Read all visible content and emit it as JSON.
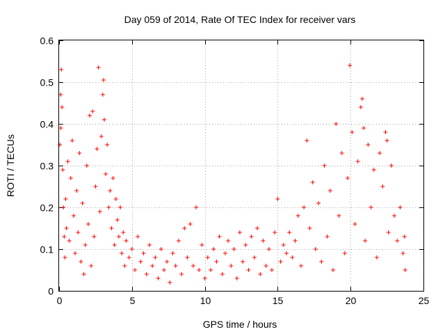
{
  "chart_data": {
    "type": "scatter",
    "title": "Day 059 of 2014, Rate Of TEC Index for receiver vars",
    "xlabel": "GPS time / hours",
    "ylabel": "ROTI / TECUs",
    "xlim": [
      0,
      25
    ],
    "ylim": [
      0,
      0.6
    ],
    "xticks": [
      0,
      5,
      10,
      15,
      20,
      25
    ],
    "xtick_labels": [
      "0",
      "5",
      "10",
      "15",
      "20",
      "25"
    ],
    "yticks": [
      0,
      0.1,
      0.2,
      0.3,
      0.4,
      0.5,
      0.6
    ],
    "ytick_labels": [
      "0",
      "0.1",
      "0.2",
      "0.3",
      "0.4",
      "0.5",
      "0.6"
    ],
    "grid": true,
    "marker": "+",
    "color": "#ff0000",
    "series": [
      {
        "name": "ROTI",
        "points": [
          [
            0.05,
            0.35
          ],
          [
            0.1,
            0.47
          ],
          [
            0.12,
            0.39
          ],
          [
            0.15,
            0.53
          ],
          [
            0.2,
            0.44
          ],
          [
            0.25,
            0.29
          ],
          [
            0.3,
            0.2
          ],
          [
            0.35,
            0.13
          ],
          [
            0.4,
            0.08
          ],
          [
            0.45,
            0.22
          ],
          [
            0.5,
            0.15
          ],
          [
            0.6,
            0.31
          ],
          [
            0.7,
            0.12
          ],
          [
            0.8,
            0.27
          ],
          [
            0.9,
            0.36
          ],
          [
            1.0,
            0.18
          ],
          [
            1.1,
            0.09
          ],
          [
            1.2,
            0.24
          ],
          [
            1.3,
            0.14
          ],
          [
            1.4,
            0.33
          ],
          [
            1.5,
            0.07
          ],
          [
            1.6,
            0.21
          ],
          [
            1.7,
            0.04
          ],
          [
            1.8,
            0.11
          ],
          [
            1.9,
            0.3
          ],
          [
            2.0,
            0.16
          ],
          [
            2.1,
            0.42
          ],
          [
            2.2,
            0.06
          ],
          [
            2.3,
            0.43
          ],
          [
            2.4,
            0.13
          ],
          [
            2.5,
            0.25
          ],
          [
            2.6,
            0.34
          ],
          [
            2.7,
            0.535
          ],
          [
            2.8,
            0.19
          ],
          [
            2.9,
            0.37
          ],
          [
            3.0,
            0.47
          ],
          [
            3.05,
            0.505
          ],
          [
            3.1,
            0.41
          ],
          [
            3.2,
            0.28
          ],
          [
            3.3,
            0.35
          ],
          [
            3.4,
            0.2
          ],
          [
            3.5,
            0.24
          ],
          [
            3.6,
            0.15
          ],
          [
            3.7,
            0.27
          ],
          [
            3.8,
            0.11
          ],
          [
            3.9,
            0.22
          ],
          [
            4.0,
            0.17
          ],
          [
            4.1,
            0.13
          ],
          [
            4.2,
            0.2
          ],
          [
            4.3,
            0.09
          ],
          [
            4.4,
            0.14
          ],
          [
            4.5,
            0.06
          ],
          [
            4.6,
            0.12
          ],
          [
            4.8,
            0.08
          ],
          [
            5.0,
            0.1
          ],
          [
            5.2,
            0.05
          ],
          [
            5.4,
            0.13
          ],
          [
            5.6,
            0.07
          ],
          [
            5.8,
            0.09
          ],
          [
            6.0,
            0.04
          ],
          [
            6.2,
            0.11
          ],
          [
            6.4,
            0.06
          ],
          [
            6.6,
            0.08
          ],
          [
            6.8,
            0.03
          ],
          [
            7.0,
            0.1
          ],
          [
            7.2,
            0.05
          ],
          [
            7.4,
            0.07
          ],
          [
            7.6,
            0.02
          ],
          [
            7.8,
            0.09
          ],
          [
            8.0,
            0.06
          ],
          [
            8.2,
            0.12
          ],
          [
            8.4,
            0.04
          ],
          [
            8.6,
            0.15
          ],
          [
            8.8,
            0.08
          ],
          [
            9.0,
            0.16
          ],
          [
            9.2,
            0.06
          ],
          [
            9.4,
            0.2
          ],
          [
            9.6,
            0.05
          ],
          [
            9.8,
            0.11
          ],
          [
            10.0,
            0.03
          ],
          [
            10.2,
            0.08
          ],
          [
            10.4,
            0.05
          ],
          [
            10.6,
            0.1
          ],
          [
            10.8,
            0.07
          ],
          [
            11.0,
            0.13
          ],
          [
            11.2,
            0.04
          ],
          [
            11.4,
            0.09
          ],
          [
            11.6,
            0.12
          ],
          [
            11.8,
            0.06
          ],
          [
            12.0,
            0.1
          ],
          [
            12.2,
            0.03
          ],
          [
            12.4,
            0.14
          ],
          [
            12.6,
            0.07
          ],
          [
            12.8,
            0.11
          ],
          [
            13.0,
            0.05
          ],
          [
            13.2,
            0.13
          ],
          [
            13.4,
            0.08
          ],
          [
            13.6,
            0.15
          ],
          [
            13.8,
            0.04
          ],
          [
            14.0,
            0.12
          ],
          [
            14.2,
            0.06
          ],
          [
            14.4,
            0.1
          ],
          [
            14.6,
            0.05
          ],
          [
            14.8,
            0.14
          ],
          [
            15.0,
            0.22
          ],
          [
            15.2,
            0.07
          ],
          [
            15.4,
            0.11
          ],
          [
            15.6,
            0.09
          ],
          [
            15.8,
            0.14
          ],
          [
            16.0,
            0.08
          ],
          [
            16.2,
            0.12
          ],
          [
            16.4,
            0.18
          ],
          [
            16.6,
            0.06
          ],
          [
            16.8,
            0.2
          ],
          [
            17.0,
            0.36
          ],
          [
            17.2,
            0.15
          ],
          [
            17.4,
            0.26
          ],
          [
            17.6,
            0.1
          ],
          [
            17.8,
            0.21
          ],
          [
            18.0,
            0.07
          ],
          [
            18.2,
            0.3
          ],
          [
            18.4,
            0.13
          ],
          [
            18.6,
            0.24
          ],
          [
            18.8,
            0.05
          ],
          [
            19.0,
            0.4
          ],
          [
            19.2,
            0.18
          ],
          [
            19.4,
            0.33
          ],
          [
            19.6,
            0.09
          ],
          [
            19.8,
            0.27
          ],
          [
            19.95,
            0.54
          ],
          [
            20.1,
            0.38
          ],
          [
            20.3,
            0.16
          ],
          [
            20.5,
            0.31
          ],
          [
            20.7,
            0.44
          ],
          [
            20.8,
            0.46
          ],
          [
            20.9,
            0.39
          ],
          [
            21.0,
            0.12
          ],
          [
            21.2,
            0.35
          ],
          [
            21.4,
            0.2
          ],
          [
            21.6,
            0.29
          ],
          [
            21.8,
            0.08
          ],
          [
            22.0,
            0.33
          ],
          [
            22.2,
            0.25
          ],
          [
            22.4,
            0.38
          ],
          [
            22.5,
            0.36
          ],
          [
            22.6,
            0.14
          ],
          [
            22.8,
            0.3
          ],
          [
            23.0,
            0.18
          ],
          [
            23.2,
            0.12
          ],
          [
            23.4,
            0.2
          ],
          [
            23.6,
            0.09
          ],
          [
            23.7,
            0.13
          ],
          [
            23.75,
            0.05
          ]
        ]
      }
    ]
  }
}
